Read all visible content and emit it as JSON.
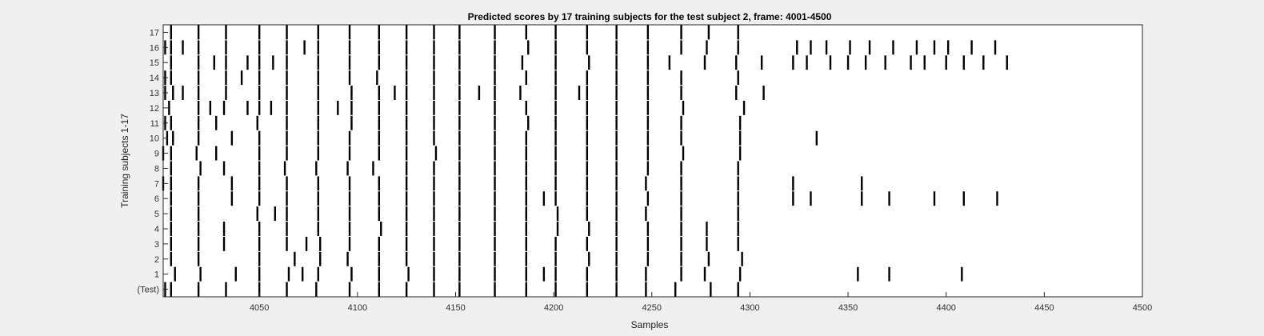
{
  "chart_data": {
    "type": "event-raster",
    "title": "Predicted scores by 17 training subjects for the test subject 2, frame: 4001-4500",
    "xlabel": "Samples",
    "ylabel": "Training subjects 1-17",
    "xlim": [
      4001,
      4500
    ],
    "xticks": [
      4050,
      4100,
      4150,
      4200,
      4250,
      4300,
      4350,
      4400,
      4450,
      4500
    ],
    "rows": [
      "(Test)",
      "1",
      "2",
      "3",
      "4",
      "5",
      "6",
      "7",
      "8",
      "9",
      "10",
      "11",
      "12",
      "13",
      "14",
      "15",
      "16",
      "17"
    ],
    "colors": {
      "background": "#f0f0f0",
      "plot_background": "#ffffff",
      "mark": "#000000"
    },
    "events": [
      [
        4002,
        4005,
        4019,
        4033,
        4050,
        4064,
        4079,
        4096,
        4111,
        4125,
        4139,
        4152,
        4170,
        4186,
        4201,
        4217,
        4232,
        4247,
        4262,
        4280,
        4294
      ],
      [
        4007,
        4020,
        4038,
        4050,
        4065,
        4072,
        4080,
        4097,
        4111,
        4126,
        4139,
        4152,
        4170,
        4186,
        4195,
        4201,
        4217,
        4232,
        4247,
        4265,
        4277,
        4295,
        4355,
        4371,
        4408
      ],
      [
        4005,
        4019,
        4050,
        4068,
        4081,
        4095,
        4111,
        4125,
        4139,
        4152,
        4170,
        4186,
        4201,
        4218,
        4232,
        4248,
        4265,
        4279,
        4296
      ],
      [
        4005,
        4019,
        4032,
        4050,
        4064,
        4074,
        4081,
        4096,
        4111,
        4125,
        4139,
        4152,
        4170,
        4186,
        4201,
        4217,
        4232,
        4248,
        4265,
        4278,
        4294
      ],
      [
        4005,
        4019,
        4032,
        4050,
        4064,
        4080,
        4096,
        4112,
        4125,
        4139,
        4152,
        4170,
        4186,
        4202,
        4218,
        4232,
        4248,
        4265,
        4278,
        4294
      ],
      [
        4005,
        4019,
        4049,
        4058,
        4064,
        4080,
        4096,
        4111,
        4125,
        4139,
        4152,
        4170,
        4186,
        4202,
        4217,
        4232,
        4247,
        4265,
        4294
      ],
      [
        4005,
        4019,
        4036,
        4050,
        4064,
        4080,
        4096,
        4111,
        4125,
        4139,
        4152,
        4170,
        4186,
        4195,
        4201,
        4217,
        4232,
        4248,
        4265,
        4294,
        4322,
        4331,
        4357,
        4371,
        4394,
        4409,
        4426
      ],
      [
        4001,
        4005,
        4019,
        4036,
        4050,
        4064,
        4080,
        4096,
        4111,
        4125,
        4139,
        4152,
        4170,
        4186,
        4201,
        4217,
        4232,
        4247,
        4265,
        4294,
        4322,
        4357
      ],
      [
        4005,
        4020,
        4032,
        4050,
        4063,
        4079,
        4095,
        4108,
        4125,
        4139,
        4152,
        4170,
        4186,
        4201,
        4217,
        4232,
        4248,
        4265,
        4294
      ],
      [
        4001,
        4005,
        4018,
        4028,
        4050,
        4064,
        4080,
        4096,
        4111,
        4125,
        4140,
        4152,
        4170,
        4186,
        4201,
        4217,
        4232,
        4248,
        4266,
        4295
      ],
      [
        4003,
        4006,
        4019,
        4036,
        4050,
        4064,
        4080,
        4096,
        4111,
        4125,
        4139,
        4152,
        4170,
        4186,
        4201,
        4217,
        4232,
        4248,
        4265,
        4295,
        4334
      ],
      [
        4002,
        4005,
        4019,
        4028,
        4049,
        4064,
        4080,
        4097,
        4111,
        4125,
        4139,
        4152,
        4170,
        4187,
        4201,
        4217,
        4232,
        4248,
        4265,
        4295
      ],
      [
        4004,
        4019,
        4025,
        4032,
        4044,
        4050,
        4056,
        4064,
        4080,
        4090,
        4097,
        4111,
        4125,
        4139,
        4152,
        4170,
        4186,
        4201,
        4217,
        4232,
        4248,
        4266,
        4297
      ],
      [
        4002,
        4006,
        4011,
        4019,
        4033,
        4050,
        4064,
        4080,
        4097,
        4111,
        4119,
        4125,
        4139,
        4152,
        4162,
        4170,
        4183,
        4201,
        4213,
        4217,
        4232,
        4248,
        4265,
        4293,
        4307
      ],
      [
        4002,
        4005,
        4019,
        4033,
        4041,
        4050,
        4064,
        4080,
        4096,
        4110,
        4125,
        4139,
        4152,
        4170,
        4186,
        4201,
        4217,
        4232,
        4248,
        4265,
        4294
      ],
      [
        4005,
        4019,
        4027,
        4033,
        4044,
        4050,
        4057,
        4064,
        4080,
        4096,
        4111,
        4125,
        4139,
        4152,
        4170,
        4184,
        4201,
        4218,
        4232,
        4248,
        4259,
        4277,
        4293,
        4306,
        4322,
        4329,
        4341,
        4350,
        4359,
        4369,
        4382,
        4389,
        4400,
        4409,
        4419,
        4431
      ],
      [
        4002,
        4005,
        4011,
        4019,
        4033,
        4050,
        4064,
        4073,
        4080,
        4096,
        4111,
        4125,
        4139,
        4152,
        4170,
        4187,
        4201,
        4217,
        4232,
        4248,
        4265,
        4278,
        4294,
        4324,
        4331,
        4339,
        4351,
        4361,
        4373,
        4385,
        4394,
        4401,
        4413,
        4425
      ],
      [
        4005,
        4019,
        4033,
        4050,
        4064,
        4080,
        4096,
        4111,
        4125,
        4139,
        4152,
        4170,
        4186,
        4201,
        4217,
        4232,
        4248,
        4265,
        4279,
        4294
      ]
    ]
  }
}
